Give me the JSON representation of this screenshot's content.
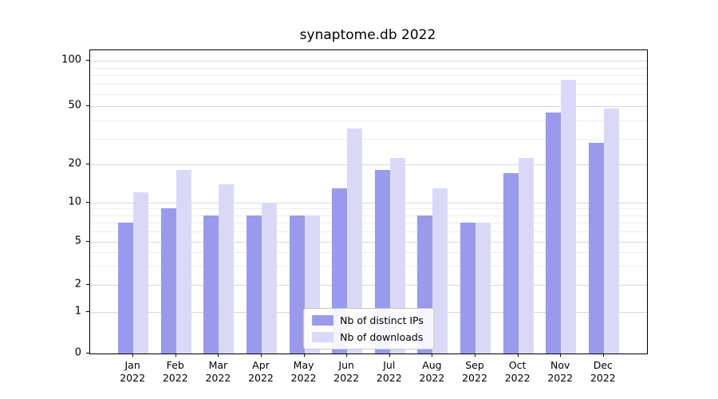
{
  "chart_data": {
    "type": "bar",
    "title": "synaptome.db 2022",
    "year_label": "2022",
    "categories": [
      "Jan",
      "Feb",
      "Mar",
      "Apr",
      "May",
      "Jun",
      "Jul",
      "Aug",
      "Sep",
      "Oct",
      "Nov",
      "Dec"
    ],
    "series": [
      {
        "name": "Nb of distinct IPs",
        "color": "#9a9aec",
        "values": [
          7,
          9,
          8,
          8,
          8,
          13,
          18,
          8,
          7,
          17,
          45,
          28
        ]
      },
      {
        "name": "Nb of downloads",
        "color": "#d9d9f7",
        "values": [
          12,
          18,
          14,
          10,
          8,
          35,
          22,
          13,
          7,
          22,
          75,
          48
        ]
      }
    ],
    "yticks": [
      0,
      1,
      2,
      5,
      10,
      20,
      50,
      100
    ],
    "minor_gridlines": [
      3,
      4,
      6,
      7,
      8,
      9,
      30,
      40,
      60,
      70,
      80,
      90
    ],
    "yscale": "symlog",
    "ylim": [
      0,
      115
    ],
    "xlabel": "",
    "ylabel": "",
    "grid": true,
    "legend_position": "lower center"
  }
}
